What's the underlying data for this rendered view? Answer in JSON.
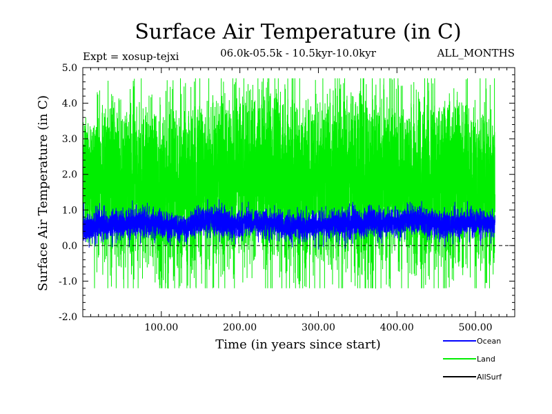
{
  "chart_data": {
    "type": "line",
    "title": "Surface Air Temperature (in C)",
    "subtitle": "06.0k-05.5k - 10.5kyr-10.0kyr",
    "experiment_label": "Expt = xosup-tejxi",
    "season_label": "ALL_MONTHS",
    "xlabel": "Time (in years since start)",
    "ylabel": "Surface Air Temperature (in C)",
    "xlim": [
      0,
      550
    ],
    "ylim": [
      -2.0,
      5.0
    ],
    "x_ticks": [
      100,
      200,
      300,
      400,
      500
    ],
    "x_tick_labels": [
      "100.00",
      "200.00",
      "300.00",
      "400.00",
      "500.00"
    ],
    "y_ticks": [
      -2,
      -1,
      0,
      1,
      2,
      3,
      4,
      5
    ],
    "y_tick_labels": [
      "-2.0",
      "-1.0",
      "0.0",
      "1.0",
      "2.0",
      "3.0",
      "4.0",
      "5.0"
    ],
    "zero_line": true,
    "n_years": 525,
    "series": [
      {
        "name": "Land",
        "color": "#00ee00",
        "mean": 1.8,
        "approx_min": -1.2,
        "approx_max": 4.7,
        "envelope_low": [
          0.1,
          -0.4,
          -0.5,
          -0.6,
          -0.3,
          -0.2,
          -0.4,
          -0.3,
          -0.5,
          -0.4,
          -0.6,
          -0.5,
          -0.4
        ],
        "envelope_high": [
          3.7,
          3.9,
          4.0,
          3.8,
          4.2,
          4.1,
          3.9,
          4.0,
          4.3,
          4.1,
          4.2,
          4.0,
          3.6
        ]
      },
      {
        "name": "Ocean",
        "color": "#0000ff",
        "mean": 0.6,
        "approx_min": -0.2,
        "approx_max": 1.3,
        "envelope_low": [
          0.1,
          0.2,
          0.3,
          0.2,
          0.3,
          0.3,
          0.2,
          0.3,
          0.2,
          0.3,
          0.3,
          0.2,
          0.2
        ],
        "envelope_high": [
          0.9,
          1.0,
          1.1,
          0.9,
          1.1,
          1.0,
          1.0,
          1.0,
          1.1,
          1.0,
          1.1,
          1.0,
          0.9
        ]
      },
      {
        "name": "AllSurf",
        "color": "#000000",
        "mean": 0.9
      }
    ],
    "legend_entries": [
      "Ocean",
      "Land",
      "AllSurf"
    ],
    "legend_position": "bottom-right, outside plot"
  }
}
